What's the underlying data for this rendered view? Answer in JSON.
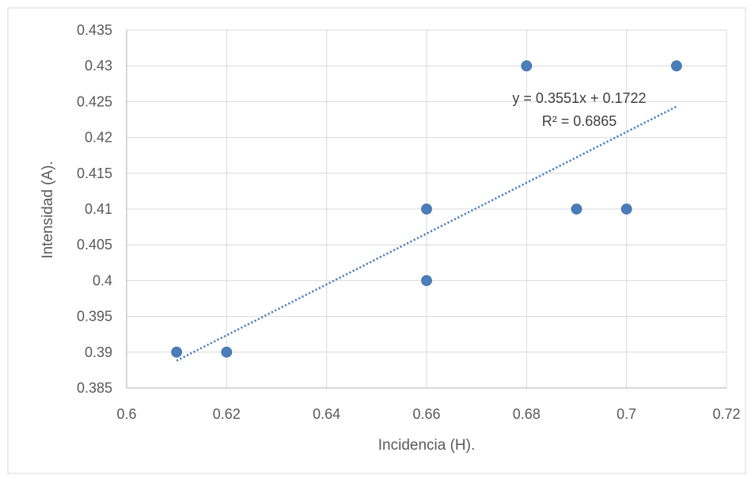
{
  "chart_data": {
    "type": "scatter",
    "title": "",
    "xlabel": "Incidencia (H).",
    "ylabel": "Intensidad (A).",
    "xlim": [
      0.6,
      0.72
    ],
    "ylim": [
      0.385,
      0.435
    ],
    "xticks": [
      "0.6",
      "0.62",
      "0.64",
      "0.66",
      "0.68",
      "0.7",
      "0.72"
    ],
    "yticks": [
      "0.385",
      "0.39",
      "0.395",
      "0.4",
      "0.405",
      "0.41",
      "0.415",
      "0.42",
      "0.425",
      "0.43",
      "0.435"
    ],
    "grid": true,
    "legend": "none",
    "series": [
      {
        "color": "#4a7ebb",
        "points": [
          {
            "x": 0.61,
            "y": 0.39
          },
          {
            "x": 0.62,
            "y": 0.39
          },
          {
            "x": 0.66,
            "y": 0.41
          },
          {
            "x": 0.66,
            "y": 0.4
          },
          {
            "x": 0.68,
            "y": 0.43
          },
          {
            "x": 0.69,
            "y": 0.41
          },
          {
            "x": 0.7,
            "y": 0.41
          },
          {
            "x": 0.71,
            "y": 0.43
          }
        ]
      }
    ],
    "trendline": {
      "type": "linear",
      "style": "dotted",
      "color": "#4a7ebb",
      "slope": 0.3551,
      "intercept": 0.1722,
      "x_range": [
        0.61,
        0.71
      ],
      "equation_label": "y = 0.3551x + 0.1722",
      "r2_label": "R² = 0.6865"
    }
  }
}
